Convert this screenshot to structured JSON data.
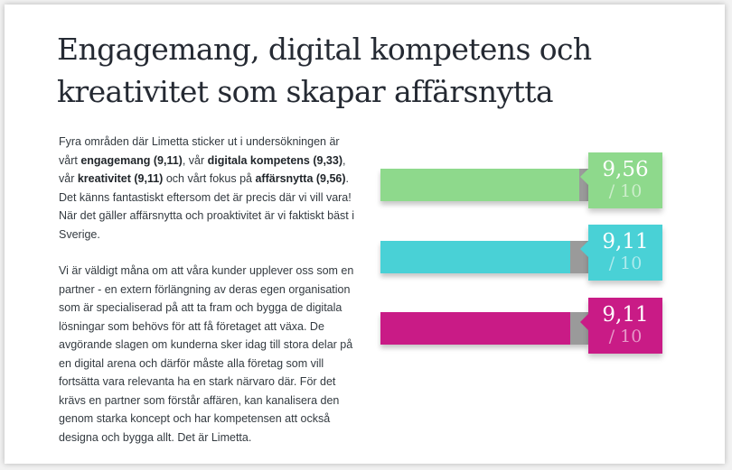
{
  "heading": {
    "line1": "Engagemang, digital kompetens och",
    "line2": "kreativitet som skapar affärsnytta"
  },
  "paragraph1": {
    "t1": "Fyra områden där Limetta sticker ut i undersökningen är vårt ",
    "b1": "engagemang (9,11)",
    "t2": ", vår ",
    "b2": "digitala kompetens (9,33)",
    "t3": ", vår ",
    "b3": "kreativitet (9,11)",
    "t4": " och vårt fokus på ",
    "b4": "affärsnytta (9,56)",
    "t5": ". Det känns fantastiskt eftersom det är precis där vi vill vara! När det gäller affärsnytta och proaktivitet är vi faktiskt bäst i Sverige."
  },
  "paragraph2": "Vi är väldigt måna om att våra kunder upplever oss som en partner - en extern förlängning av deras egen organisation som är specialiserad på att ta fram och bygga de digitala lösningar som behövs för att få företaget att växa. De avgörande slagen om kunderna sker idag till stora delar på en digital arena och därför måste alla företag som vill fortsätta vara relevanta ha en stark närvaro där. För det krävs en partner som förstår affären, kan kanalisera den genom starka koncept och har kompetensen att också designa och bygga allt. Det är Limetta.",
  "scores": [
    {
      "value": 9.56,
      "max": 10,
      "label": "9,56",
      "max_label": "/ 10",
      "color": "#8ed98c"
    },
    {
      "value": 9.11,
      "max": 10,
      "label": "9,11",
      "max_label": "/ 10",
      "color": "#49d1d6"
    },
    {
      "value": 9.11,
      "max": 10,
      "label": "9,11",
      "max_label": "/ 10",
      "color": "#c91b86"
    }
  ]
}
